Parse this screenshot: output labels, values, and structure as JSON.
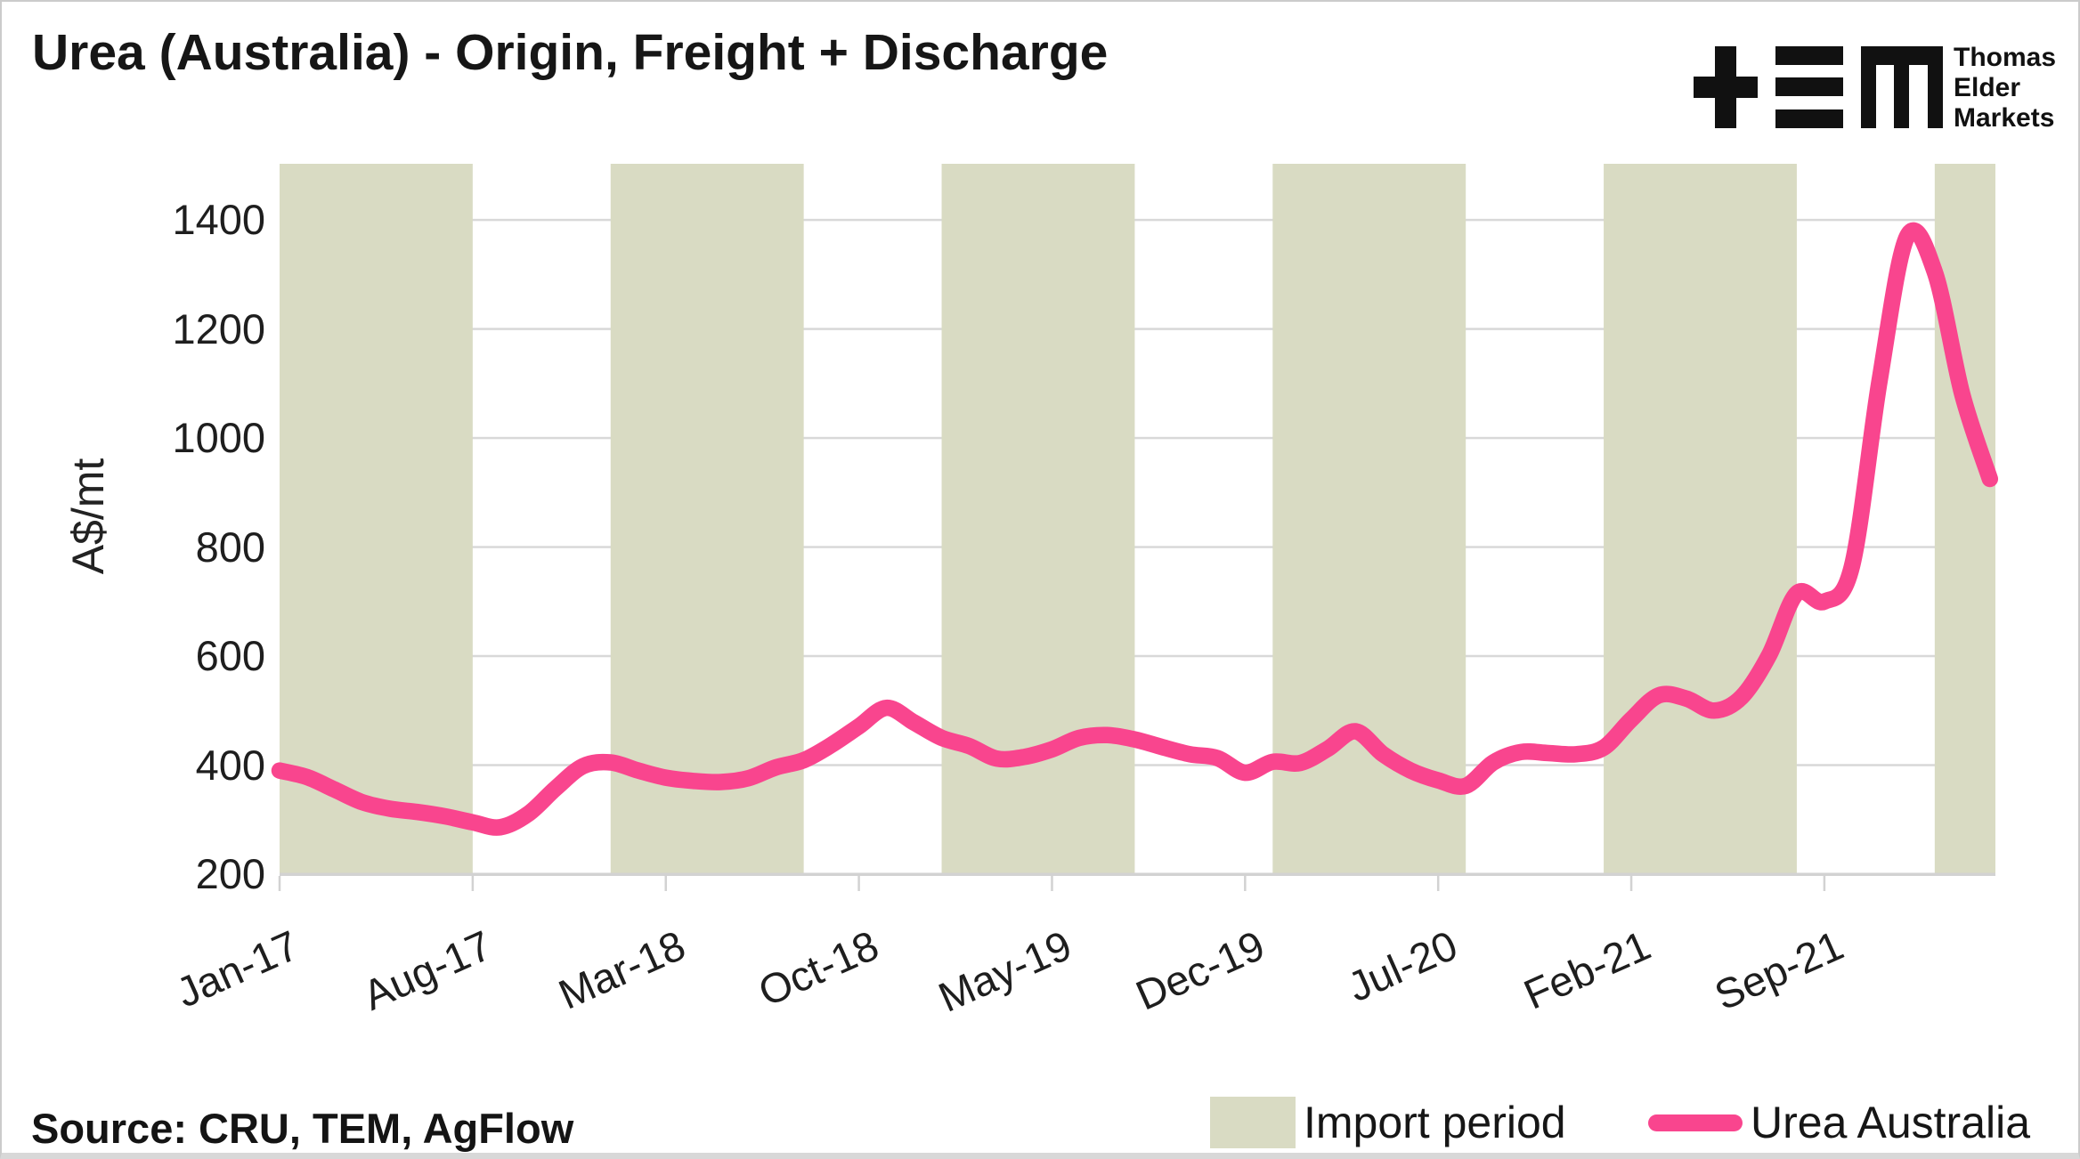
{
  "logo": {
    "lines": [
      "Thomas",
      "Elder",
      "Markets"
    ],
    "alt": "TEM Thomas Elder Markets"
  },
  "footer": {
    "source": "Source: CRU, TEM, AgFlow"
  },
  "chart_data": {
    "type": "line",
    "title": "Urea (Australia) - Origin, Freight + Discharge",
    "xlabel": "",
    "ylabel": "A$/mt",
    "ylim": [
      200,
      1503
    ],
    "xlim_months": [
      0,
      62.2
    ],
    "y_ticks": [
      200,
      400,
      600,
      800,
      1000,
      1200,
      1400
    ],
    "x_tick_months": [
      0,
      7,
      14,
      21,
      28,
      35,
      42,
      49,
      56
    ],
    "x_tick_labels": [
      "Jan-17",
      "Aug-17",
      "Mar-18",
      "Oct-18",
      "May-19",
      "Dec-19",
      "Jul-20",
      "Feb-21",
      "Sep-21"
    ],
    "grid": "horizontal",
    "legend_position": "bottom-right",
    "legend": [
      {
        "label": "Import period",
        "type": "band"
      },
      {
        "label": "Urea Australia",
        "type": "line"
      }
    ],
    "bands_months": [
      [
        0,
        7
      ],
      [
        12,
        19
      ],
      [
        24,
        31
      ],
      [
        36,
        43
      ],
      [
        48,
        55
      ],
      [
        60,
        62.2
      ]
    ],
    "series": [
      {
        "name": "Urea Australia",
        "frequency": "monthly",
        "dates": [
          "Jan-17",
          "Feb-17",
          "Mar-17",
          "Apr-17",
          "May-17",
          "Jun-17",
          "Jul-17",
          "Aug-17",
          "Sep-17",
          "Oct-17",
          "Nov-17",
          "Dec-17",
          "Jan-18",
          "Feb-18",
          "Mar-18",
          "Apr-18",
          "May-18",
          "Jun-18",
          "Jul-18",
          "Aug-18",
          "Sep-18",
          "Oct-18",
          "Nov-18",
          "Dec-18",
          "Jan-19",
          "Feb-19",
          "Mar-19",
          "Apr-19",
          "May-19",
          "Jun-19",
          "Jul-19",
          "Aug-19",
          "Sep-19",
          "Oct-19",
          "Nov-19",
          "Dec-19",
          "Jan-20",
          "Feb-20",
          "Mar-20",
          "Apr-20",
          "May-20",
          "Jun-20",
          "Jul-20",
          "Aug-20",
          "Sep-20",
          "Oct-20",
          "Nov-20",
          "Dec-20",
          "Jan-21",
          "Feb-21",
          "Mar-21",
          "Apr-21",
          "May-21",
          "Jun-21",
          "Jul-21",
          "Aug-21",
          "Sep-21",
          "Oct-21",
          "Nov-21",
          "Dec-21",
          "Jan-22",
          "Feb-22",
          "Mar-22"
        ],
        "values": [
          390,
          378,
          355,
          332,
          320,
          314,
          306,
          295,
          286,
          310,
          357,
          398,
          405,
          390,
          377,
          371,
          369,
          376,
          396,
          409,
          437,
          471,
          505,
          478,
          450,
          435,
          412,
          415,
          429,
          450,
          455,
          447,
          433,
          420,
          413,
          386,
          406,
          404,
          430,
          462,
          420,
          390,
          372,
          362,
          405,
          424,
          422,
          420,
          432,
          484,
          528,
          522,
          500,
          525,
          602,
          715,
          700,
          765,
          1105,
          1370,
          1305,
          1080,
          925
        ]
      }
    ],
    "colors": {
      "line": "#F9458E",
      "band": "#D9DBC3",
      "grid": "#D8D8D8",
      "axis": "#D2D2D2",
      "text": "#1A1A1A",
      "background": "#FFFFFF"
    }
  }
}
